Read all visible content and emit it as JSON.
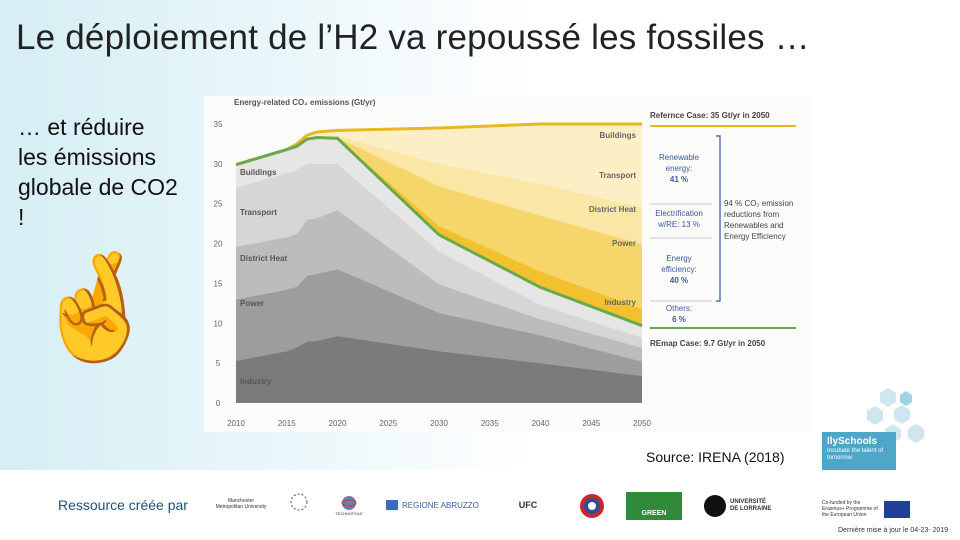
{
  "slide": {
    "title": "Le déploiement de l’H2 va repoussé les fossiles …",
    "subtitle_lines": [
      "… et réduire",
      "les émissions",
      "globale de CO2",
      "!"
    ],
    "emoji": "🤞",
    "source": "Source: IRENA (2018)",
    "credit": "Ressource créée par",
    "updated": "Dernière mise à jour le 04-23- 2019"
  },
  "brand": {
    "name": "IlySchools",
    "tagline": "Incubate the talent of tomorrow"
  },
  "eu_text": "Co-funded by the Erasmus+ Programme of the European Union",
  "logos": [
    {
      "name": "Manchester Metropolitan University"
    },
    {
      "name": "Fellow"
    },
    {
      "name": "TECHNOPOLE"
    },
    {
      "name": "REGIONE ABRUZZO"
    },
    {
      "name": "UFC"
    },
    {
      "name": "UTBM"
    },
    {
      "name": "CNRS"
    },
    {
      "name": "GREEN"
    },
    {
      "name": "UNIVERSITÉ DE LORRAINE"
    }
  ],
  "colors": {
    "industry": "#7b7b7b",
    "power": "#9d9d9d",
    "district_heat": "#bcbcbc",
    "transport": "#d6d6d6",
    "buildings": "#e6e6e6",
    "remap_line": "#6aa84f",
    "reference_line": "#e8b820",
    "yellow_dark": "#f2c12e",
    "yellow_mid": "#f6d66a",
    "yellow_light": "#fae7a6",
    "yellow_pale": "#fcefc6"
  },
  "chart_data": {
    "type": "area",
    "title": "Energy-related CO₂ emissions (Gt/yr)",
    "xlabel": "",
    "ylabel": "",
    "xlim": [
      2010,
      2050
    ],
    "ylim": [
      0,
      35
    ],
    "x_ticks": [
      2010,
      2015,
      2020,
      2025,
      2030,
      2035,
      2040,
      2045,
      2050
    ],
    "y_ticks": [
      0,
      5,
      10,
      15,
      20,
      25,
      30,
      35
    ],
    "x": [
      2010,
      2015,
      2016,
      2017,
      2018,
      2020,
      2030,
      2040,
      2050
    ],
    "series": [
      {
        "name": "Industry",
        "key": "industry",
        "values": [
          5.3,
          6.5,
          7.0,
          7.7,
          7.8,
          8.4,
          6.5,
          5.0,
          3.4
        ]
      },
      {
        "name": "Power",
        "key": "power",
        "values": [
          13.0,
          14.2,
          14.6,
          16.0,
          16.2,
          16.8,
          11.3,
          8.5,
          5.2
        ]
      },
      {
        "name": "District Heat",
        "key": "district_heat",
        "values": [
          19.6,
          20.8,
          21.2,
          23.0,
          23.2,
          24.2,
          14.9,
          10.5,
          6.9
        ]
      },
      {
        "name": "Transport",
        "key": "transport",
        "values": [
          27.0,
          28.8,
          29.2,
          30.0,
          30.0,
          30.0,
          19.0,
          12.3,
          8.2
        ]
      },
      {
        "name": "Buildings",
        "key": "buildings",
        "values": [
          29.9,
          31.8,
          32.2,
          33.1,
          33.3,
          33.2,
          21.1,
          14.5,
          9.7
        ]
      }
    ],
    "remap": {
      "name": "REmap Case: 9.7 Gt/yr in 2050",
      "values": [
        29.9,
        31.8,
        32.2,
        33.1,
        33.3,
        33.2,
        21.1,
        14.5,
        9.7
      ]
    },
    "reference": {
      "name": "Refernce Case: 35 Gt/yr in 2050",
      "values": [
        29.9,
        31.8,
        32.5,
        33.6,
        34.0,
        34.2,
        34.5,
        35.0,
        35.0
      ]
    },
    "band_boundaries": {
      "renewables": [
        29.9,
        31.8,
        32.2,
        33.1,
        33.3,
        33.5,
        30.0,
        27.5,
        24.5
      ],
      "electrification": [
        29.9,
        31.8,
        32.2,
        33.1,
        33.3,
        33.3,
        27.2,
        23.5,
        19.9
      ],
      "efficiency": [
        29.9,
        31.8,
        32.2,
        33.1,
        33.3,
        33.2,
        22.2,
        16.5,
        11.8
      ]
    },
    "sector_labels_left": [
      "Buildings",
      "Transport",
      "District Heat",
      "Power",
      "Industry"
    ],
    "sector_labels_right": [
      "Buildings",
      "Transport",
      "District Heat",
      "Power",
      "Industry"
    ],
    "annotations": {
      "reference_case": "Refernce Case: 35 Gt/yr in 2050",
      "remap_case": "REmap Case: 9.7 Gt/yr in 2050",
      "renewables": [
        "Renewable",
        "energy:",
        "41 %"
      ],
      "electrification": [
        "Electrification",
        "w/RE: 13 %"
      ],
      "efficiency": [
        "Energy",
        "efficiency:",
        "40 %"
      ],
      "others": [
        "Others:",
        "6 %"
      ],
      "total": [
        "94 % CO₂ emission",
        "reductions from",
        "Renewables and",
        "Energy Efficiency"
      ]
    }
  }
}
